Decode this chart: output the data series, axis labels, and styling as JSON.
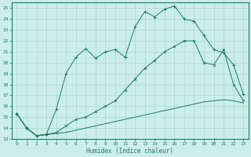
{
  "xlabel": "Humidex (Indice chaleur)",
  "bg_color": "#cceee8",
  "line_color": "#1a7a6e",
  "grid_color": "#a8d8d0",
  "xlim": [
    -0.5,
    23.5
  ],
  "ylim": [
    13,
    25.5
  ],
  "xticks": [
    0,
    1,
    2,
    3,
    4,
    5,
    6,
    7,
    8,
    9,
    10,
    11,
    12,
    13,
    14,
    15,
    16,
    17,
    18,
    19,
    20,
    21,
    22,
    23
  ],
  "yticks": [
    13,
    14,
    15,
    16,
    17,
    18,
    19,
    20,
    21,
    22,
    23,
    24,
    25
  ],
  "line1_x": [
    0,
    1,
    2,
    3,
    4,
    5,
    6,
    7,
    8,
    9,
    10,
    11,
    12,
    13,
    14,
    15,
    16,
    17,
    18,
    19,
    20,
    21,
    22,
    23
  ],
  "line1_y": [
    15.3,
    14.0,
    13.3,
    13.4,
    15.7,
    19.0,
    20.5,
    21.3,
    20.4,
    21.0,
    21.2,
    20.5,
    23.3,
    24.7,
    24.2,
    24.9,
    25.2,
    24.0,
    23.8,
    22.5,
    21.2,
    20.9,
    19.8,
    17.1
  ],
  "line2_x": [
    0,
    1,
    2,
    3,
    4,
    5,
    6,
    7,
    8,
    9,
    10,
    11,
    12,
    13,
    14,
    15,
    16,
    17,
    18,
    19,
    20,
    21,
    22,
    23
  ],
  "line2_y": [
    15.3,
    14.0,
    13.3,
    13.4,
    13.6,
    14.2,
    14.8,
    15.0,
    15.5,
    16.0,
    16.5,
    17.5,
    18.5,
    19.5,
    20.2,
    21.0,
    21.5,
    22.0,
    22.0,
    20.0,
    19.8,
    21.2,
    18.0,
    16.5
  ],
  "line3_x": [
    0,
    1,
    2,
    3,
    4,
    5,
    6,
    7,
    8,
    9,
    10,
    11,
    12,
    13,
    14,
    15,
    16,
    17,
    18,
    19,
    20,
    21,
    22,
    23
  ],
  "line3_y": [
    15.3,
    14.0,
    13.3,
    13.4,
    13.5,
    13.6,
    13.8,
    14.0,
    14.2,
    14.4,
    14.6,
    14.8,
    15.0,
    15.2,
    15.4,
    15.6,
    15.8,
    16.0,
    16.2,
    16.4,
    16.5,
    16.6,
    16.5,
    16.3
  ]
}
